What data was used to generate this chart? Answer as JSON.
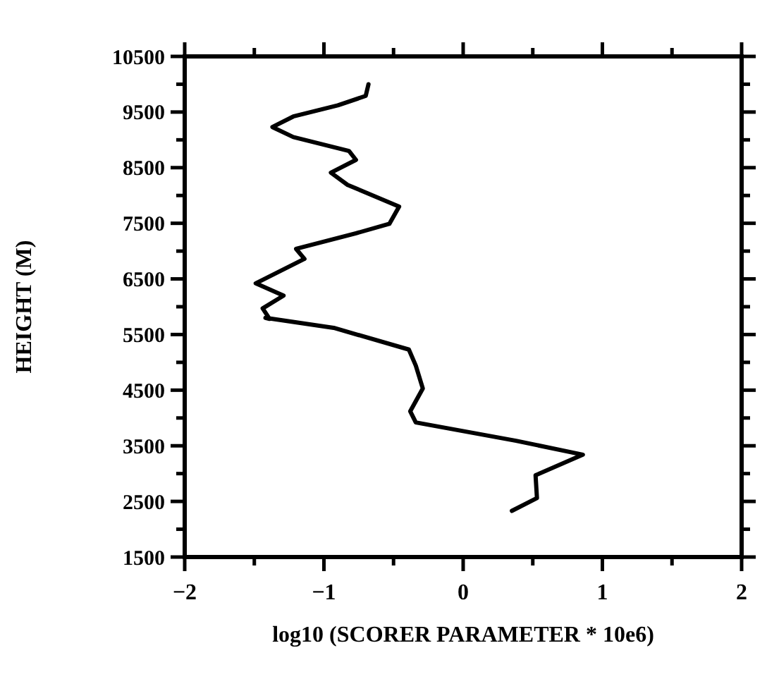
{
  "chart_data": {
    "type": "line",
    "xlabel": "log10 (SCORER PARAMETER * 10e6)",
    "ylabel": "HEIGHT (M)",
    "xlim": [
      -2,
      2
    ],
    "ylim": [
      1500,
      10500
    ],
    "xticks": [
      -2,
      {
        "value": -1.5,
        "label": null
      },
      -1,
      {
        "value": -0.5,
        "label": null
      },
      0,
      {
        "value": 0.5,
        "label": null
      },
      1,
      {
        "value": 1.5,
        "label": null
      },
      2
    ],
    "yticks": [
      1500,
      {
        "value": 2000,
        "label": null
      },
      2500,
      {
        "value": 3000,
        "label": null
      },
      3500,
      {
        "value": 4000,
        "label": null
      },
      4500,
      {
        "value": 5000,
        "label": null
      },
      5500,
      {
        "value": 6000,
        "label": null
      },
      6500,
      {
        "value": 7000,
        "label": null
      },
      7500,
      {
        "value": 8000,
        "label": null
      },
      8500,
      {
        "value": 9000,
        "label": null
      },
      9500,
      {
        "value": 10000,
        "label": null
      },
      10500
    ],
    "grid": false,
    "marker": "none",
    "line_style": "solid",
    "series": [
      {
        "color": "#000000",
        "x": [
          -0.68,
          -0.7,
          -0.9,
          -1.22,
          -1.37,
          -1.22,
          -0.82,
          -0.77,
          -0.95,
          -0.83,
          -0.46,
          -0.53,
          -0.77,
          -1.2,
          -1.14,
          -1.49,
          -1.29,
          -1.44,
          -1.39,
          -1.42,
          -0.93,
          -0.39,
          -0.34,
          -0.29,
          -0.38,
          -0.34,
          0.38,
          0.86,
          0.52,
          0.53,
          0.35
        ],
        "values": [
          10000,
          9790,
          9620,
          9420,
          9230,
          9050,
          8800,
          8640,
          8410,
          8190,
          7800,
          7490,
          7320,
          7040,
          6860,
          6420,
          6200,
          5970,
          5780,
          5800,
          5620,
          5230,
          4940,
          4530,
          4120,
          3920,
          3590,
          3340,
          2970,
          2560,
          2330
        ]
      }
    ]
  }
}
